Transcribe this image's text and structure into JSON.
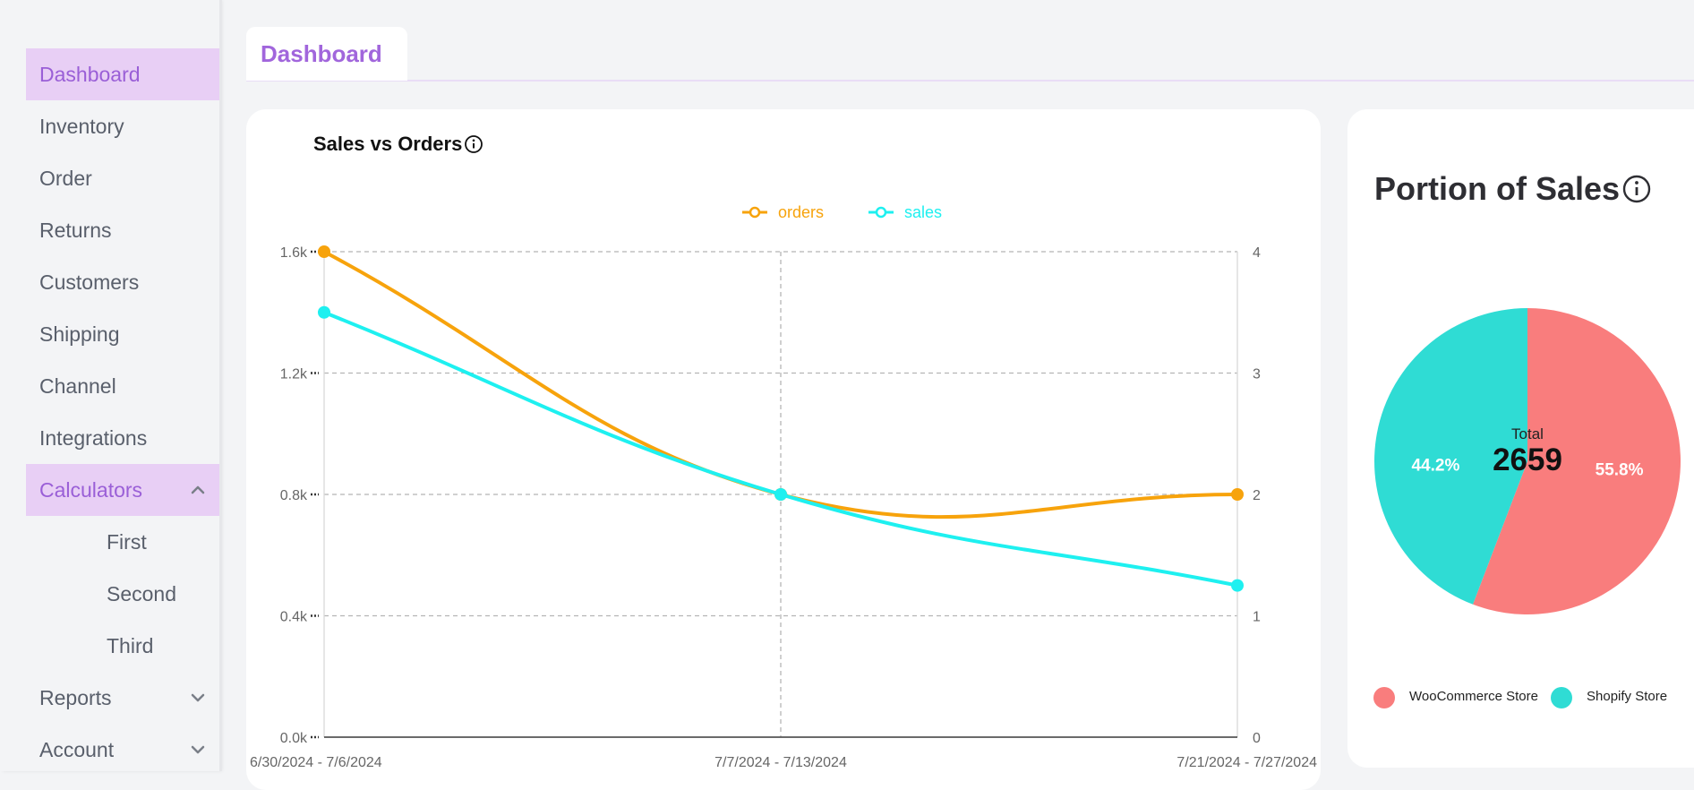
{
  "sidebar": {
    "items": [
      {
        "label": "Dashboard",
        "active": true
      },
      {
        "label": "Inventory"
      },
      {
        "label": "Order"
      },
      {
        "label": "Returns"
      },
      {
        "label": "Customers"
      },
      {
        "label": "Shipping"
      },
      {
        "label": "Channel"
      },
      {
        "label": "Integrations"
      },
      {
        "label": "Calculators",
        "active": true,
        "expanded": true,
        "children": [
          "First",
          "Second",
          "Third"
        ]
      },
      {
        "label": "Reports",
        "expanded": false
      },
      {
        "label": "Account",
        "expanded": false
      }
    ]
  },
  "header": {
    "tab_label": "Dashboard"
  },
  "colors": {
    "accent": "#9a5fd7",
    "active_bg": "#e8cff5",
    "orders": "#f7a30c",
    "sales": "#1ef0f0",
    "woocommerce": "#f97d7d",
    "shopify": "#2fdcd4"
  },
  "sales_chart": {
    "title": "Sales vs Orders",
    "info_icon": "info-circle-icon",
    "chart_data": {
      "type": "line",
      "categories": [
        "6/30/2024 - 7/6/2024",
        "7/7/2024 - 7/13/2024",
        "7/21/2024 - 7/27/2024"
      ],
      "series": [
        {
          "name": "orders",
          "axis": "right",
          "values": [
            4,
            2,
            2
          ]
        },
        {
          "name": "sales",
          "axis": "left",
          "values": [
            1400,
            800,
            500
          ]
        }
      ],
      "left_ticks": [
        "0.0k",
        "0.4k",
        "0.8k",
        "1.2k",
        "1.6k"
      ],
      "left_ylim": [
        0,
        1600
      ],
      "right_ticks": [
        "0",
        "1",
        "2",
        "3",
        "4"
      ],
      "right_ylim": [
        0,
        4
      ],
      "legend_position": "top-center",
      "grid": true
    }
  },
  "pie_chart": {
    "title": "Portion of Sales",
    "info_icon": "info-circle-icon",
    "center_label": "Total",
    "center_value": "2659",
    "chart_data": {
      "type": "pie",
      "slices": [
        {
          "name": "WooCommerce Store",
          "value": 55.8,
          "label": "55.8%"
        },
        {
          "name": "Shopify Store",
          "value": 44.2,
          "label": "44.2%"
        }
      ],
      "legend_position": "bottom"
    }
  }
}
